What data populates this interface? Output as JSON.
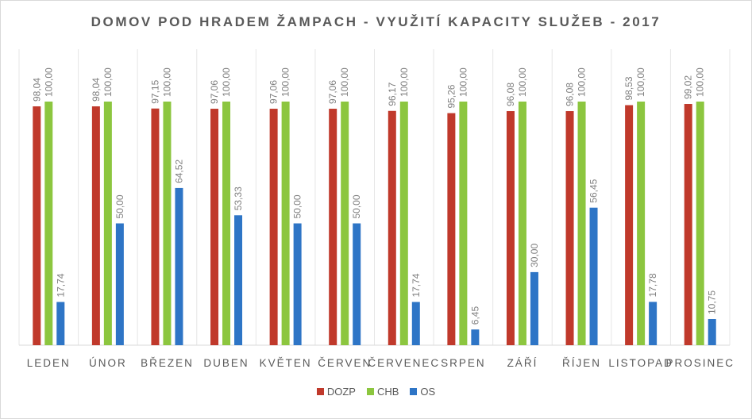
{
  "chart_data": {
    "type": "bar",
    "title": "DOMOV POD HRADEM ŽAMPACH - VYUŽITÍ KAPACITY SLUŽEB - 2017",
    "categories": [
      "LEDEN",
      "ÚNOR",
      "BŘEZEN",
      "DUBEN",
      "KVĚTEN",
      "ČERVEN",
      "ČERVENEC",
      "SRPEN",
      "ZÁŘÍ",
      "ŘÍJEN",
      "LISTOPAD",
      "PROSINEC"
    ],
    "series": [
      {
        "name": "DOZP",
        "color": "#c0392b",
        "values": [
          98.04,
          98.04,
          97.15,
          97.06,
          97.06,
          97.06,
          96.17,
          95.26,
          96.08,
          96.08,
          98.53,
          99.02
        ],
        "labels": [
          "98,04",
          "98,04",
          "97,15",
          "97,06",
          "97,06",
          "97,06",
          "96,17",
          "95,26",
          "96,08",
          "96,08",
          "98,53",
          "99,02"
        ]
      },
      {
        "name": "CHB",
        "color": "#8cc63f",
        "values": [
          100,
          100,
          100,
          100,
          100,
          100,
          100,
          100,
          100,
          100,
          100,
          100
        ],
        "labels": [
          "100,00",
          "100,00",
          "100,00",
          "100,00",
          "100,00",
          "100,00",
          "100,00",
          "100,00",
          "100,00",
          "100,00",
          "100,00",
          "100,00"
        ]
      },
      {
        "name": "OS",
        "color": "#2e75c6",
        "values": [
          17.74,
          50,
          64.52,
          53.33,
          50,
          50,
          17.74,
          6.45,
          30,
          56.45,
          17.78,
          10.75
        ],
        "labels": [
          "17,74",
          "50,00",
          "64,52",
          "53,33",
          "50,00",
          "50,00",
          "17,74",
          "6,45",
          "30,00",
          "56,45",
          "17,78",
          "10,75"
        ]
      }
    ],
    "ylim": [
      0,
      100
    ],
    "grid": true,
    "legend_position": "bottom"
  }
}
